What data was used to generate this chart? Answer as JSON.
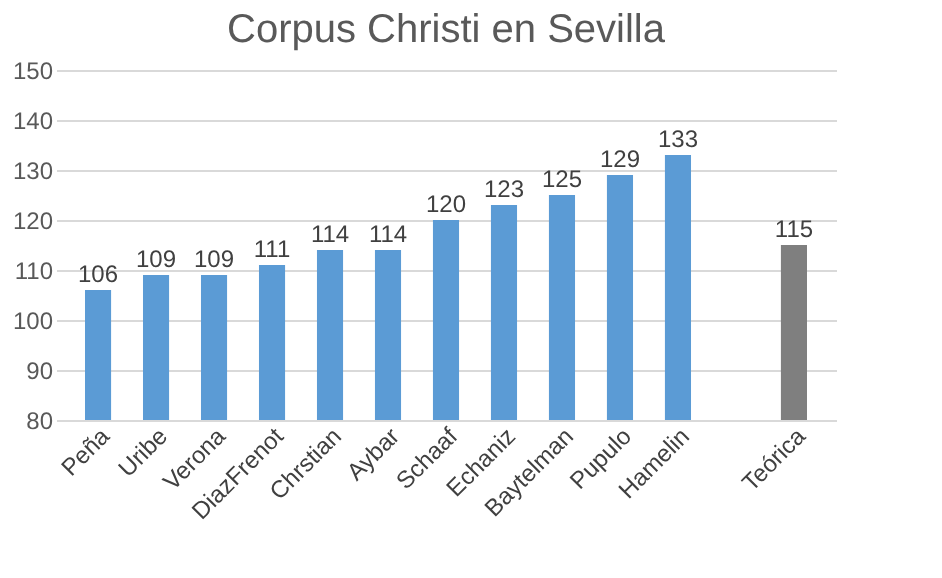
{
  "chart_data": {
    "type": "bar",
    "title": "Corpus Christi en Sevilla",
    "categories": [
      "Peña",
      "Uribe",
      "Verona",
      "DiazFrenot",
      "Chrstian",
      "Aybar",
      "Schaaf",
      "Echaniz",
      "Baytelman",
      "Pupulo",
      "Hamelin",
      null,
      "Teórica"
    ],
    "values": [
      106,
      109,
      109,
      111,
      114,
      114,
      120,
      123,
      125,
      129,
      133,
      null,
      115
    ],
    "colors": [
      "#5b9bd5",
      "#5b9bd5",
      "#5b9bd5",
      "#5b9bd5",
      "#5b9bd5",
      "#5b9bd5",
      "#5b9bd5",
      "#5b9bd5",
      "#5b9bd5",
      "#5b9bd5",
      "#5b9bd5",
      "#5b9bd5",
      "#7f7f7f"
    ],
    "ylim": [
      80,
      150
    ],
    "yticks": [
      80,
      90,
      100,
      110,
      120,
      130,
      140,
      150
    ],
    "grid": "y",
    "data_labels": true
  }
}
